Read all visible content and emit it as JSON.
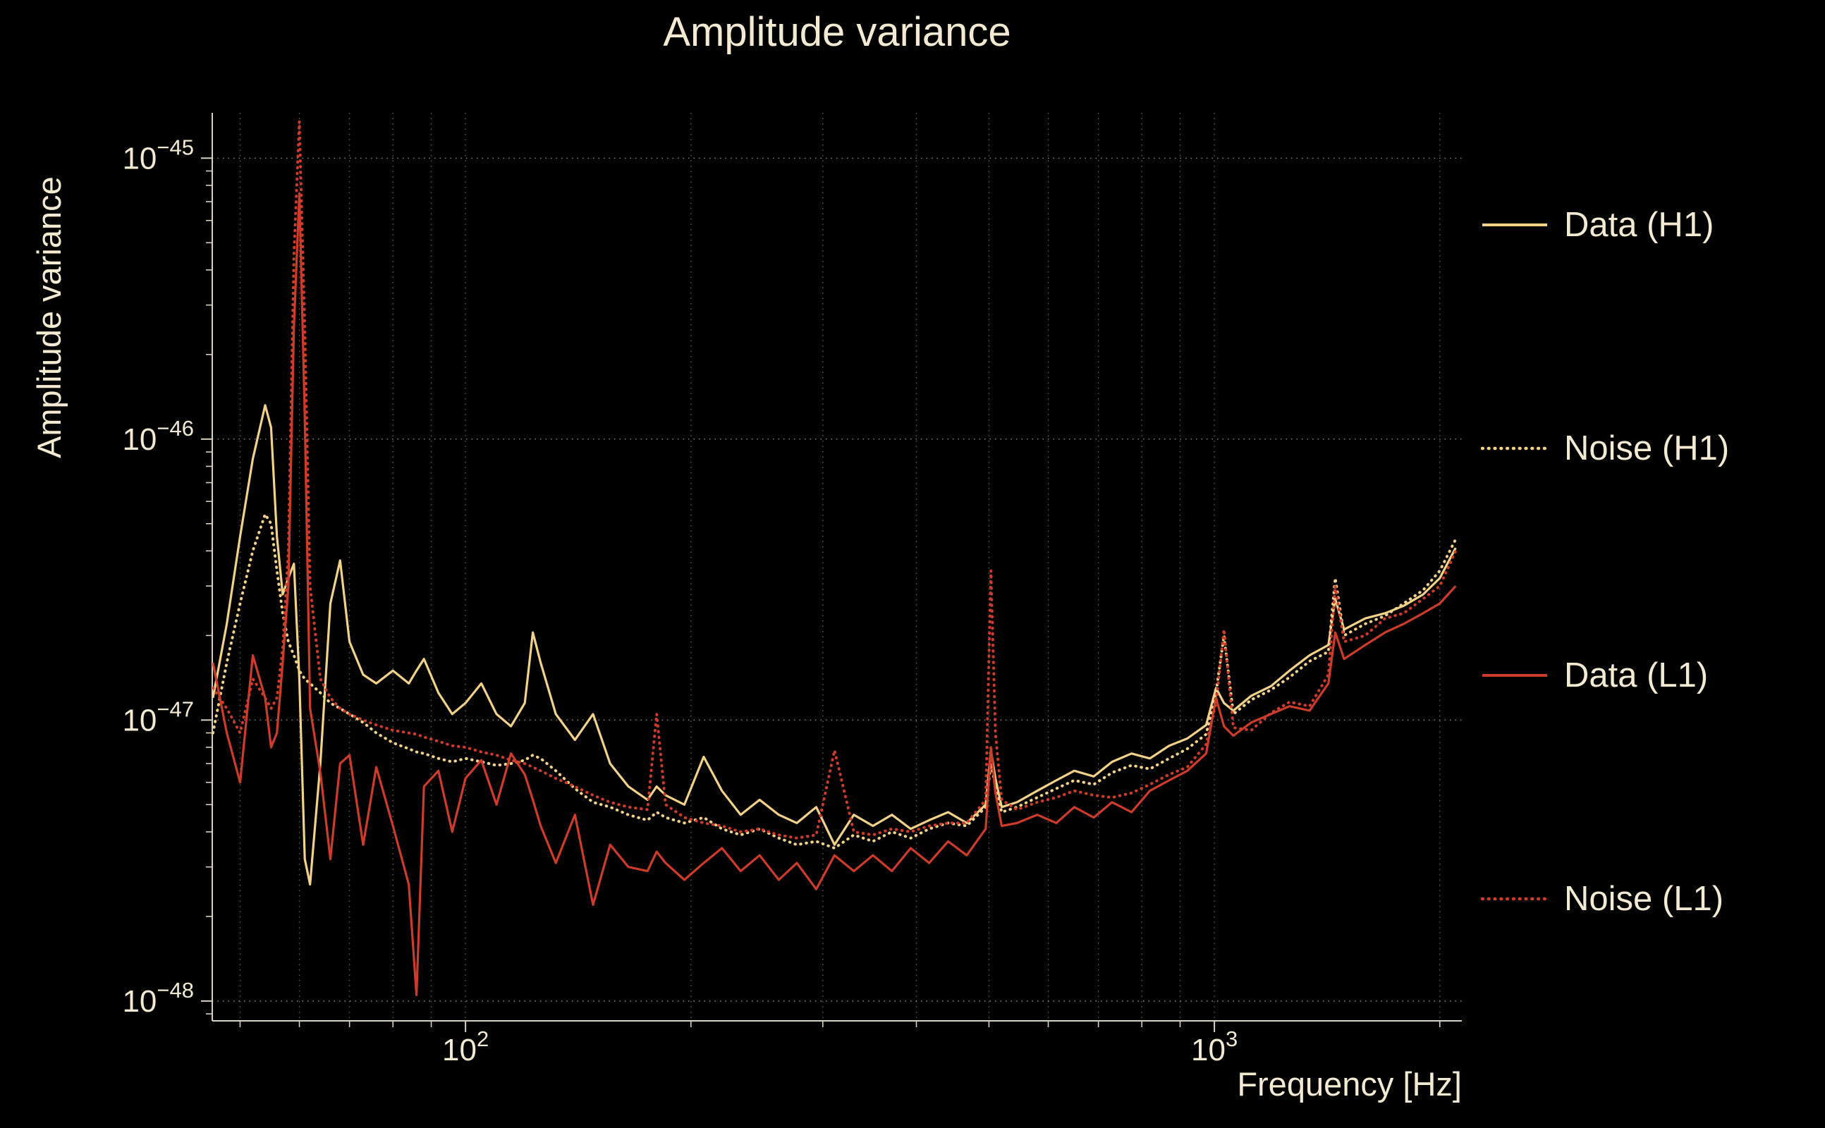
{
  "chart_data": {
    "type": "line",
    "title": "Amplitude variance",
    "xlabel": "Frequency [Hz]",
    "ylabel": "Amplitude variance",
    "x_scale": "log",
    "y_scale": "log",
    "xlim": [
      45.9,
      2140
    ],
    "ylim": [
      8.5e-49,
      1.45e-45
    ],
    "legend_position": "right",
    "grid": true,
    "colors": {
      "h1": "#f2d188",
      "l1": "#cd3b2a",
      "text": "#f4ead2",
      "grid": "#b8b09e",
      "spine": "#d9d2c0",
      "background": "#000000"
    },
    "x_ticks": [
      {
        "value": 100,
        "base": "10",
        "exponent": "2"
      },
      {
        "value": 1000,
        "base": "10",
        "exponent": "3"
      }
    ],
    "y_ticks": [
      {
        "value": 1e-45,
        "base": "10",
        "exponent": "−45"
      },
      {
        "value": 1e-46,
        "base": "10",
        "exponent": "−46"
      },
      {
        "value": 1e-47,
        "base": "10",
        "exponent": "−47"
      },
      {
        "value": 1e-48,
        "base": "10",
        "exponent": "−48"
      }
    ],
    "x_gridlines": [
      50,
      60,
      70,
      80,
      90,
      100,
      200,
      300,
      400,
      500,
      600,
      700,
      800,
      900,
      1000,
      2000
    ],
    "x": [
      46,
      48,
      50,
      52,
      54,
      55,
      56,
      57,
      58,
      59,
      60,
      61,
      62,
      64,
      66,
      68,
      70,
      73,
      76,
      80,
      84,
      86,
      88,
      92,
      96,
      100,
      105,
      110,
      115,
      120,
      123,
      126,
      132,
      140,
      148,
      156,
      165,
      175,
      180,
      185,
      196,
      208,
      220,
      233,
      247,
      262,
      277,
      294,
      311,
      330,
      350,
      371,
      393,
      416,
      441,
      467,
      495,
      503,
      510,
      520,
      545,
      580,
      615,
      650,
      690,
      730,
      775,
      820,
      870,
      920,
      975,
      1005,
      1030,
      1060,
      1120,
      1190,
      1260,
      1340,
      1420,
      1450,
      1490,
      1590,
      1690,
      1790,
      1900,
      2000,
      2100
    ],
    "series": [
      {
        "name": "Data (H1)",
        "color": "h1",
        "style": "solid",
        "values": [
          1.2e-47,
          2.2e-47,
          4.5e-47,
          8.5e-47,
          1.32e-46,
          1.1e-46,
          4.5e-47,
          2.8e-47,
          3.2e-47,
          3.6e-47,
          1.4e-47,
          3.2e-48,
          2.6e-48,
          7e-48,
          2.6e-47,
          3.7e-47,
          1.9e-47,
          1.45e-47,
          1.35e-47,
          1.5e-47,
          1.35e-47,
          1.5e-47,
          1.65e-47,
          1.25e-47,
          1.05e-47,
          1.15e-47,
          1.35e-47,
          1.05e-47,
          9.5e-48,
          1.15e-47,
          2.05e-47,
          1.6e-47,
          1.05e-47,
          8.5e-48,
          1.05e-47,
          7e-48,
          5.8e-48,
          5.2e-48,
          5.8e-48,
          5.4e-48,
          5e-48,
          7.4e-48,
          5.6e-48,
          4.6e-48,
          5.2e-48,
          4.6e-48,
          4.3e-48,
          4.9e-48,
          3.6e-48,
          4.6e-48,
          4.2e-48,
          4.6e-48,
          4.1e-48,
          4.4e-48,
          4.7e-48,
          4.3e-48,
          5e-48,
          7.8e-48,
          6.2e-48,
          4.9e-48,
          5.1e-48,
          5.6e-48,
          6.1e-48,
          6.6e-48,
          6.3e-48,
          7.1e-48,
          7.6e-48,
          7.3e-48,
          8.1e-48,
          8.6e-48,
          9.6e-48,
          1.3e-47,
          1.15e-47,
          1.08e-47,
          1.22e-47,
          1.32e-47,
          1.5e-47,
          1.7e-47,
          1.85e-47,
          2.7e-47,
          2.1e-47,
          2.3e-47,
          2.4e-47,
          2.55e-47,
          2.8e-47,
          3.2e-47,
          4.1e-47
        ]
      },
      {
        "name": "Noise (H1)",
        "color": "h1",
        "style": "dotted",
        "values": [
          9e-48,
          1.6e-47,
          2.6e-47,
          4e-47,
          5.4e-47,
          5e-47,
          3.4e-47,
          2.4e-47,
          1.9e-47,
          1.7e-47,
          1.5e-47,
          1.4e-47,
          1.35e-47,
          1.25e-47,
          1.15e-47,
          1.1e-47,
          1.05e-47,
          9.8e-48,
          9e-48,
          8.3e-48,
          7.9e-48,
          7.7e-48,
          7.6e-48,
          7.3e-48,
          7.1e-48,
          7.3e-48,
          7.1e-48,
          6.9e-48,
          7e-48,
          7.2e-48,
          7.5e-48,
          7.3e-48,
          6.6e-48,
          5.7e-48,
          5.1e-48,
          4.9e-48,
          4.6e-48,
          4.4e-48,
          4.7e-48,
          4.5e-48,
          4.3e-48,
          4.5e-48,
          4.1e-48,
          3.9e-48,
          4.1e-48,
          3.8e-48,
          3.6e-48,
          3.7e-48,
          3.5e-48,
          3.9e-48,
          3.7e-48,
          4e-48,
          3.8e-48,
          4.1e-48,
          4.3e-48,
          4.2e-48,
          4.9e-48,
          7e-48,
          5.8e-48,
          4.7e-48,
          4.9e-48,
          5.3e-48,
          5.7e-48,
          6.1e-48,
          5.9e-48,
          6.5e-48,
          6.9e-48,
          6.7e-48,
          7.3e-48,
          7.9e-48,
          8.9e-48,
          1.25e-47,
          2e-47,
          1.05e-47,
          1.18e-47,
          1.28e-47,
          1.42e-47,
          1.62e-47,
          1.75e-47,
          3.2e-47,
          2e-47,
          2.2e-47,
          2.35e-47,
          2.6e-47,
          2.9e-47,
          3.4e-47,
          4.4e-47
        ]
      },
      {
        "name": "Data (L1)",
        "color": "l1",
        "style": "solid",
        "values": [
          1.6e-47,
          9e-48,
          6e-48,
          1.7e-47,
          1.2e-47,
          8e-48,
          9e-48,
          1.6e-47,
          3e-47,
          2.5e-46,
          7.5e-46,
          1.2e-46,
          1.1e-47,
          6.5e-48,
          3.2e-48,
          7e-48,
          7.5e-48,
          3.6e-48,
          6.8e-48,
          4.2e-48,
          2.6e-48,
          1.05e-48,
          5.8e-48,
          6.6e-48,
          4e-48,
          6.2e-48,
          7.2e-48,
          5e-48,
          7.6e-48,
          6.4e-48,
          5.2e-48,
          4.2e-48,
          3.1e-48,
          4.6e-48,
          2.2e-48,
          3.6e-48,
          3e-48,
          2.9e-48,
          3.4e-48,
          3.1e-48,
          2.7e-48,
          3.1e-48,
          3.5e-48,
          2.9e-48,
          3.3e-48,
          2.7e-48,
          3.1e-48,
          2.5e-48,
          3.3e-48,
          2.9e-48,
          3.3e-48,
          2.9e-48,
          3.5e-48,
          3.1e-48,
          3.7e-48,
          3.3e-48,
          4.1e-48,
          8e-48,
          5.5e-48,
          4.2e-48,
          4.3e-48,
          4.6e-48,
          4.3e-48,
          4.9e-48,
          4.5e-48,
          5.1e-48,
          4.7e-48,
          5.6e-48,
          6.1e-48,
          6.6e-48,
          7.6e-48,
          1.2e-47,
          9.5e-48,
          8.8e-48,
          9.8e-48,
          1.05e-47,
          1.12e-47,
          1.08e-47,
          1.35e-47,
          2.05e-47,
          1.65e-47,
          1.85e-47,
          2.05e-47,
          2.2e-47,
          2.4e-47,
          2.6e-47,
          3e-47
        ]
      },
      {
        "name": "Noise (L1)",
        "color": "l1",
        "style": "dotted",
        "values": [
          1.3e-47,
          1.1e-47,
          9e-48,
          1.4e-47,
          1.2e-47,
          1.1e-47,
          1.2e-47,
          1.8e-47,
          4e-47,
          4.5e-46,
          1.35e-45,
          2.5e-46,
          3e-47,
          1.4e-47,
          1.2e-47,
          1.1e-47,
          1.05e-47,
          1e-47,
          9.6e-48,
          9.2e-48,
          9e-48,
          8.9e-48,
          8.7e-48,
          8.4e-48,
          8.1e-48,
          8e-48,
          7.7e-48,
          7.5e-48,
          7.2e-48,
          7e-48,
          6.8e-48,
          6.6e-48,
          6.2e-48,
          5.8e-48,
          5.4e-48,
          5.1e-48,
          4.9e-48,
          4.8e-48,
          1.05e-47,
          5e-48,
          4.5e-48,
          4.3e-48,
          4.2e-48,
          4e-48,
          4.1e-48,
          3.9e-48,
          3.8e-48,
          3.9e-48,
          7.8e-48,
          4e-48,
          3.9e-48,
          4.1e-48,
          4e-48,
          4.2e-48,
          4.3e-48,
          4.3e-48,
          5.2e-48,
          3.4e-47,
          9e-48,
          5.2e-48,
          4.8e-48,
          5.1e-48,
          5.3e-48,
          5.6e-48,
          5.4e-48,
          5.3e-48,
          5.5e-48,
          5.9e-48,
          6.4e-48,
          6.8e-48,
          8.2e-48,
          1.15e-47,
          2.1e-47,
          9.4e-48,
          9.2e-48,
          1.06e-47,
          1.16e-47,
          1.12e-47,
          1.45e-47,
          3e-47,
          1.9e-47,
          2e-47,
          2.3e-47,
          2.4e-47,
          2.7e-47,
          3e-47,
          4e-47
        ]
      }
    ]
  }
}
